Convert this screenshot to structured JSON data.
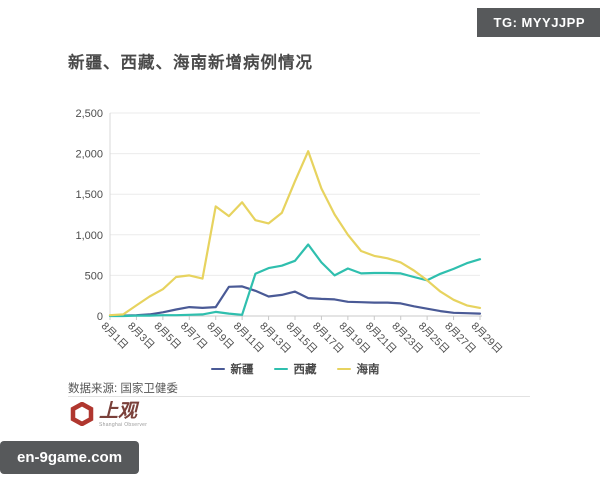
{
  "badge": {
    "text": "TG: MYYJJPP"
  },
  "title": "新疆、西藏、海南新增病例情况",
  "chart_data": {
    "type": "line",
    "title": "新疆、西藏、海南新增病例情况",
    "categories": [
      "8月1日",
      "8月2日",
      "8月3日",
      "8月4日",
      "8月5日",
      "8月6日",
      "8月7日",
      "8月8日",
      "8月9日",
      "8月10日",
      "8月11日",
      "8月12日",
      "8月13日",
      "8月14日",
      "8月15日",
      "8月16日",
      "8月17日",
      "8月18日",
      "8月19日",
      "8月20日",
      "8月21日",
      "8月22日",
      "8月23日",
      "8月24日",
      "8月25日",
      "8月26日",
      "8月27日",
      "8月28日",
      "8月29日"
    ],
    "x_tick_labels": [
      "8月1日",
      "8月3日",
      "8月5日",
      "8月7日",
      "8月9日",
      "8月11日",
      "8月13日",
      "8月15日",
      "8月17日",
      "8月19日",
      "8月21日",
      "8月23日",
      "8月25日",
      "8月27日",
      "8月29日"
    ],
    "series": [
      {
        "name": "新疆",
        "color": "#4a5a96",
        "values": [
          5,
          5,
          10,
          20,
          45,
          80,
          110,
          100,
          110,
          360,
          365,
          310,
          240,
          260,
          300,
          220,
          210,
          205,
          175,
          170,
          165,
          165,
          155,
          120,
          90,
          60,
          40,
          35,
          30
        ]
      },
      {
        "name": "西藏",
        "color": "#2fbfae",
        "values": [
          0,
          0,
          5,
          5,
          10,
          10,
          15,
          20,
          50,
          30,
          15,
          520,
          590,
          620,
          680,
          880,
          660,
          500,
          585,
          525,
          530,
          530,
          525,
          480,
          440,
          520,
          580,
          650,
          700
        ]
      },
      {
        "name": "海南",
        "color": "#e7d35f",
        "values": [
          10,
          20,
          130,
          240,
          330,
          480,
          500,
          460,
          1350,
          1230,
          1400,
          1180,
          1140,
          1270,
          1660,
          2030,
          1570,
          1250,
          1000,
          800,
          740,
          710,
          660,
          560,
          440,
          300,
          200,
          130,
          100
        ]
      }
    ],
    "ylim": [
      0,
      2500
    ],
    "yticks": [
      0,
      500,
      1000,
      1500,
      2000,
      2500
    ],
    "ytick_labels": [
      "0",
      "500",
      "1,000",
      "1,500",
      "2,000",
      "2,500"
    ],
    "grid": true,
    "legend_position": "bottom",
    "xlabel": "",
    "ylabel": ""
  },
  "source": {
    "label": "数据来源: 国家卫健委"
  },
  "logo": {
    "name": "上观",
    "subtitle": "Shanghai Observer"
  },
  "watermark": {
    "text": "en-9game.com"
  }
}
